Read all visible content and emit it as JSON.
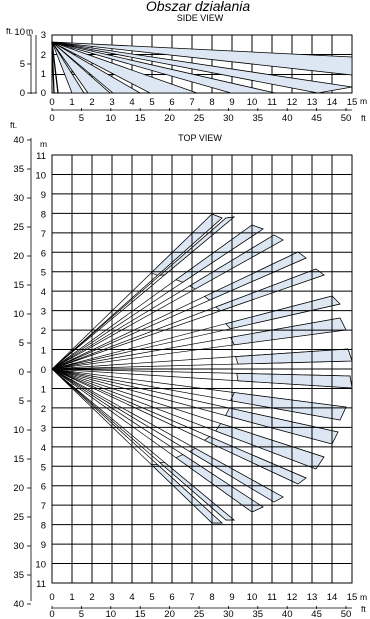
{
  "header": {
    "title": "Obszar działania"
  },
  "side_view": {
    "title": "SIDE VIEW",
    "unit_ft": "ft.",
    "unit_m": "m",
    "left_ft_ticks": [
      "10",
      "5",
      "0"
    ],
    "left_m_ticks": [
      "3",
      "2",
      "1",
      "0"
    ],
    "bottom_m_ticks": [
      "0",
      "1",
      "2",
      "3",
      "4",
      "5",
      "6",
      "7",
      "8",
      "9",
      "10",
      "11",
      "12",
      "13",
      "14",
      "15"
    ],
    "bottom_ft_ticks": [
      "0",
      "5",
      "10",
      "15",
      "20",
      "25",
      "30",
      "35",
      "40",
      "45",
      "50"
    ],
    "bottom_m_unit": "m",
    "bottom_ft_unit": "ft",
    "beam_color": "#dde6f3"
  },
  "top_view": {
    "title": "TOP VIEW",
    "unit_ft": "ft.",
    "unit_m": "m",
    "left_ft_ticks": [
      "40",
      "35",
      "30",
      "25",
      "20",
      "15",
      "10",
      "5",
      "0",
      "5",
      "10",
      "15",
      "20",
      "25",
      "30",
      "35",
      "40"
    ],
    "left_m_ticks": [
      "11",
      "10",
      "9",
      "8",
      "7",
      "6",
      "5",
      "4",
      "3",
      "2",
      "1",
      "0",
      "1",
      "2",
      "3",
      "4",
      "5",
      "6",
      "7",
      "8",
      "9",
      "10",
      "11"
    ],
    "bottom_m_ticks": [
      "0",
      "1",
      "2",
      "3",
      "4",
      "5",
      "6",
      "7",
      "8",
      "9",
      "10",
      "11",
      "12",
      "13",
      "14",
      "15"
    ],
    "bottom_ft_ticks": [
      "0",
      "5",
      "10",
      "15",
      "20",
      "25",
      "30",
      "35",
      "40",
      "45",
      "50"
    ],
    "bottom_m_unit": "m",
    "bottom_ft_unit": "ft",
    "beam_color": "#dde6f3"
  }
}
